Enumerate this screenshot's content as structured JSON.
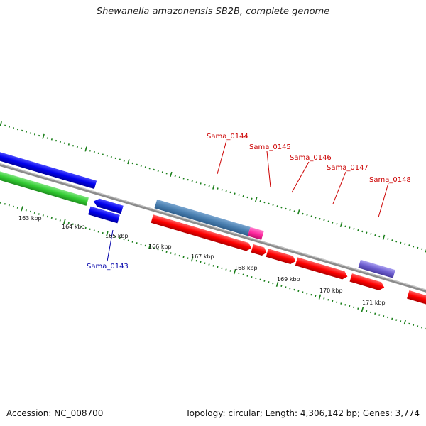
{
  "title": "Shewanella amazonensis SB2B, complete genome",
  "footer": {
    "accession": "Accession: NC_008700",
    "summary": "Topology: circular; Length: 4,306,142 bp; Genes: 3,774"
  },
  "scale_labels": [
    "163 kbp",
    "164 kbp",
    "165 kbp",
    "166 kbp",
    "167 kbp",
    "168 kbp",
    "169 kbp",
    "170 kbp",
    "171 kbp"
  ],
  "gene_labels": {
    "Sama_0143": "Sama_0143",
    "Sama_0144": "Sama_0144",
    "Sama_0145": "Sama_0145",
    "Sama_0146": "Sama_0146",
    "Sama_0147": "Sama_0147",
    "Sama_0148": "Sama_0148"
  },
  "colors": {
    "backbone": "#8c8c8c",
    "tick": "#1a7f1a",
    "red": "#ff0000",
    "blue": "#0000ee",
    "green": "#33cc33",
    "steel": "#4a7fb0",
    "pink": "#ff2aa0",
    "purple": "#6e5fd0",
    "gene_label_red": "#cc0000",
    "gene_label_blue": "#0000aa"
  }
}
